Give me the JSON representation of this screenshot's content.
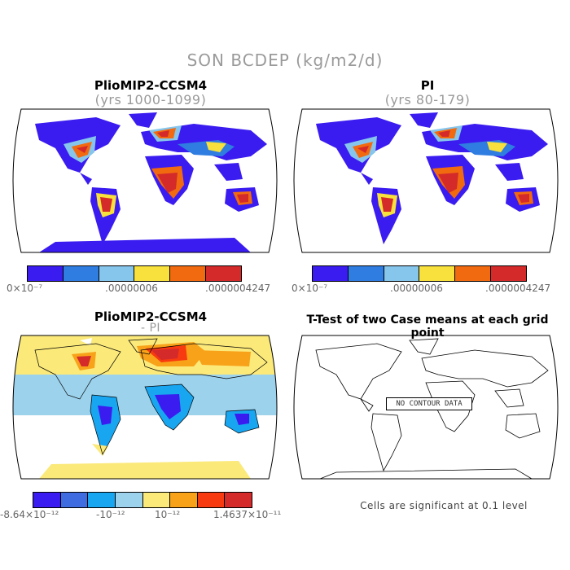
{
  "main_title": "SON BCDEP (kg/m2/d)",
  "panels": [
    {
      "title": "PlioMIP2-CCSM4",
      "subtitle": "(yrs 1000-1099)"
    },
    {
      "title": "PI",
      "subtitle": "(yrs 80-179)"
    },
    {
      "title": "PlioMIP2-CCSM4",
      "subtitle": "- PI"
    },
    {
      "title": "T-Test of two Case means at each grid point",
      "subtitle": ""
    }
  ],
  "colorbar_abs": {
    "colors": [
      "#3a1cf0",
      "#2f7de0",
      "#86c6ec",
      "#f8e13c",
      "#f26a10",
      "#d42a2a"
    ],
    "labels": [
      "0×10⁻⁷",
      ".00000006",
      ".0000004247"
    ]
  },
  "colorbar_diff": {
    "colors": [
      "#3a1cf0",
      "#3f6ce0",
      "#18a6f0",
      "#9cd2ec",
      "#fbe97a",
      "#f8a21a",
      "#f83a10",
      "#d42a2a"
    ],
    "labels": [
      "-8.64×10⁻¹²",
      "-10⁻¹²",
      "10⁻¹²",
      "1.4637×10⁻¹¹"
    ]
  },
  "no_contour_label": "NO CONTOUR DATA",
  "footnote": "Cells are significant at 0.1 level",
  "icons": [
    "world-map-robinson"
  ]
}
